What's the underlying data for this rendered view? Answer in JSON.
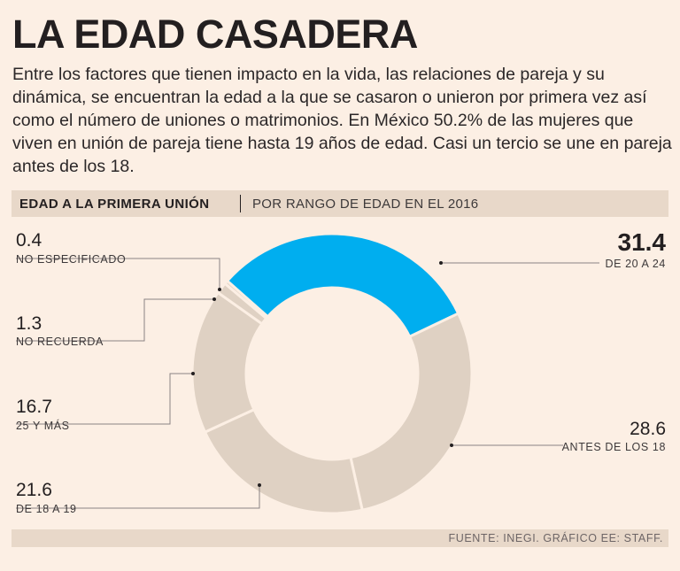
{
  "header": {
    "title": "LA EDAD CASADERA",
    "intro": "Entre los factores que tienen impacto en la vida, las relaciones de pareja y su dinámica, se encuentran la edad a la que se casaron o unieron por primera vez así como el número de uniones o matrimonios. En México 50.2% de las mujeres que viven en unión de pareja tiene hasta 19 años de edad. Casi un tercio se une en pareja antes de los 18."
  },
  "section": {
    "title": "EDAD A LA PRIMERA UNIÓN",
    "subtitle": "POR RANGO DE EDAD EN EL 2016"
  },
  "chart_data": {
    "type": "pie",
    "title": "EDAD A LA PRIMERA UNIÓN",
    "subtitle": "POR RANGO DE EDAD EN EL 2016",
    "donut": true,
    "categories": [
      "DE 20 A 24",
      "ANTES DE LOS 18",
      "DE 18 A 19",
      "25 Y MÁS",
      "NO RECUERDA",
      "NO ESPECIFICADO"
    ],
    "values": [
      31.4,
      28.6,
      21.6,
      16.7,
      1.3,
      0.4
    ],
    "value_labels": [
      "31.4",
      "28.6",
      "21.6",
      "16.7",
      "1.3",
      "0.4"
    ],
    "colors": [
      "#00aeef",
      "#dfd1c3",
      "#dfd1c3",
      "#dfd1c3",
      "#dfd1c3",
      "#dfd1c3"
    ]
  },
  "footer": {
    "source": "FUENTE: INEGI. GRÁFICO EE: STAFF."
  }
}
